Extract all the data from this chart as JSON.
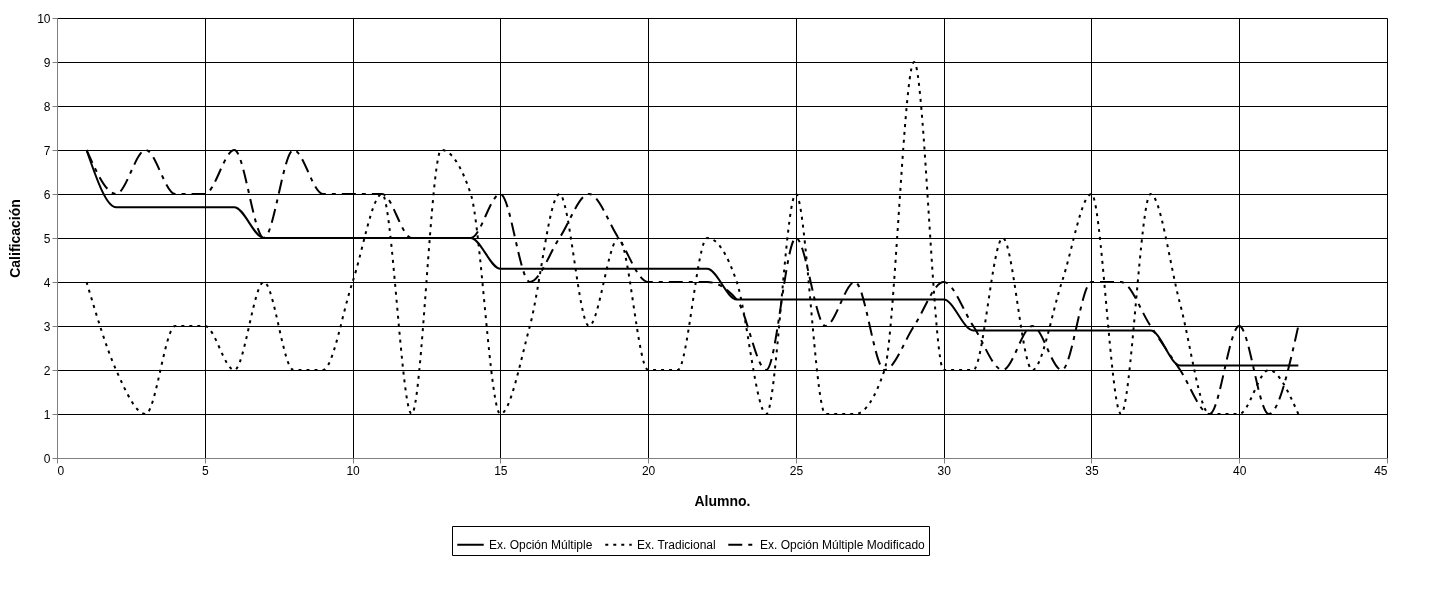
{
  "chart_data": {
    "type": "line",
    "xlabel": "Alumno.",
    "ylabel": "Calificación",
    "x": [
      1,
      2,
      3,
      4,
      5,
      6,
      7,
      8,
      9,
      10,
      11,
      12,
      13,
      14,
      15,
      16,
      17,
      18,
      19,
      20,
      21,
      22,
      23,
      24,
      25,
      26,
      27,
      28,
      29,
      30,
      31,
      32,
      33,
      34,
      35,
      36,
      37,
      38,
      39,
      40,
      41,
      42
    ],
    "series": [
      {
        "name": "Ex. Opción Múltiple",
        "color": "#000000",
        "line_style": "solid",
        "values": [
          7,
          5.7,
          5.7,
          5.7,
          5.7,
          5.7,
          5,
          5,
          5,
          5,
          5,
          5,
          5,
          5,
          4.3,
          4.3,
          4.3,
          4.3,
          4.3,
          4.3,
          4.3,
          4.3,
          3.6,
          3.6,
          3.6,
          3.6,
          3.6,
          3.6,
          3.6,
          3.6,
          2.9,
          2.9,
          2.9,
          2.9,
          2.9,
          2.9,
          2.9,
          2.1,
          2.1,
          2.1,
          2.1,
          2.1
        ]
      },
      {
        "name": "Ex. Tradicional",
        "color": "#000000",
        "line_style": "dotted",
        "values": [
          4,
          2,
          1,
          3,
          3,
          2,
          4,
          2,
          2,
          4,
          6,
          1,
          7,
          6,
          1,
          3,
          6,
          3,
          5,
          2,
          2,
          5,
          4,
          1,
          6,
          1,
          1,
          2,
          9,
          2,
          2,
          5,
          2,
          4,
          6,
          1,
          6,
          3.5,
          1,
          1,
          2,
          1
        ]
      },
      {
        "name": "Ex. Opción Múltiple Modificado",
        "color": "#000000",
        "line_style": "dashed",
        "values": [
          7,
          6,
          7,
          6,
          6,
          7,
          5,
          7,
          6,
          6,
          6,
          5,
          5,
          5,
          6,
          4,
          5,
          6,
          5,
          4,
          4,
          4,
          3.6,
          2,
          5,
          3,
          4,
          2,
          3,
          4,
          3,
          2,
          3,
          2,
          4,
          4,
          3,
          2,
          1,
          3,
          1,
          3
        ]
      }
    ],
    "xlim": [
      0,
      45
    ],
    "xticks": [
      0,
      5,
      10,
      15,
      20,
      25,
      30,
      35,
      40,
      45
    ],
    "ylim": [
      0,
      10
    ],
    "yticks": [
      0,
      1,
      2,
      3,
      4,
      5,
      6,
      7,
      8,
      9,
      10
    ],
    "grid": true,
    "legend": "bottom",
    "marker": "none"
  }
}
